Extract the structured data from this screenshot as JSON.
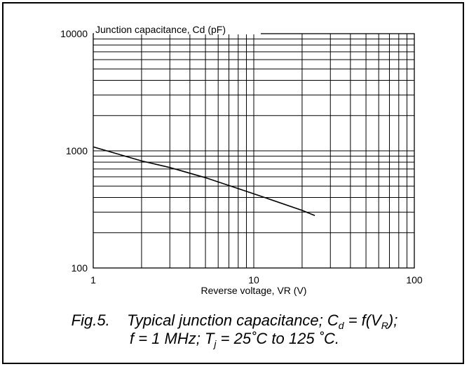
{
  "chart_data": {
    "type": "line",
    "title": "",
    "ylabel": "Junction capacitance, Cd (pF)",
    "xlabel": "Reverse voltage, VR (V)",
    "x_scale": "log",
    "y_scale": "log",
    "xlim": [
      1,
      100
    ],
    "ylim": [
      100,
      10000
    ],
    "x_ticks": [
      "1",
      "10",
      "100"
    ],
    "y_ticks": [
      "100",
      "1000",
      "10000"
    ],
    "grid": true,
    "series": [
      {
        "x": [
          1,
          2,
          3,
          5,
          10,
          20,
          24
        ],
        "y": [
          1080,
          820,
          720,
          590,
          430,
          310,
          280
        ]
      }
    ]
  },
  "caption": {
    "fig": "Fig.5.",
    "line1_a": "Typical junction capacitance; C",
    "line1_sub1": "d",
    "line1_b": " = f(V",
    "line1_sub2": "R",
    "line1_c": ");",
    "line2_a": "f = 1 MHz; T",
    "line2_sub": "j",
    "line2_b": " = 25˚C to 125 ˚C."
  }
}
